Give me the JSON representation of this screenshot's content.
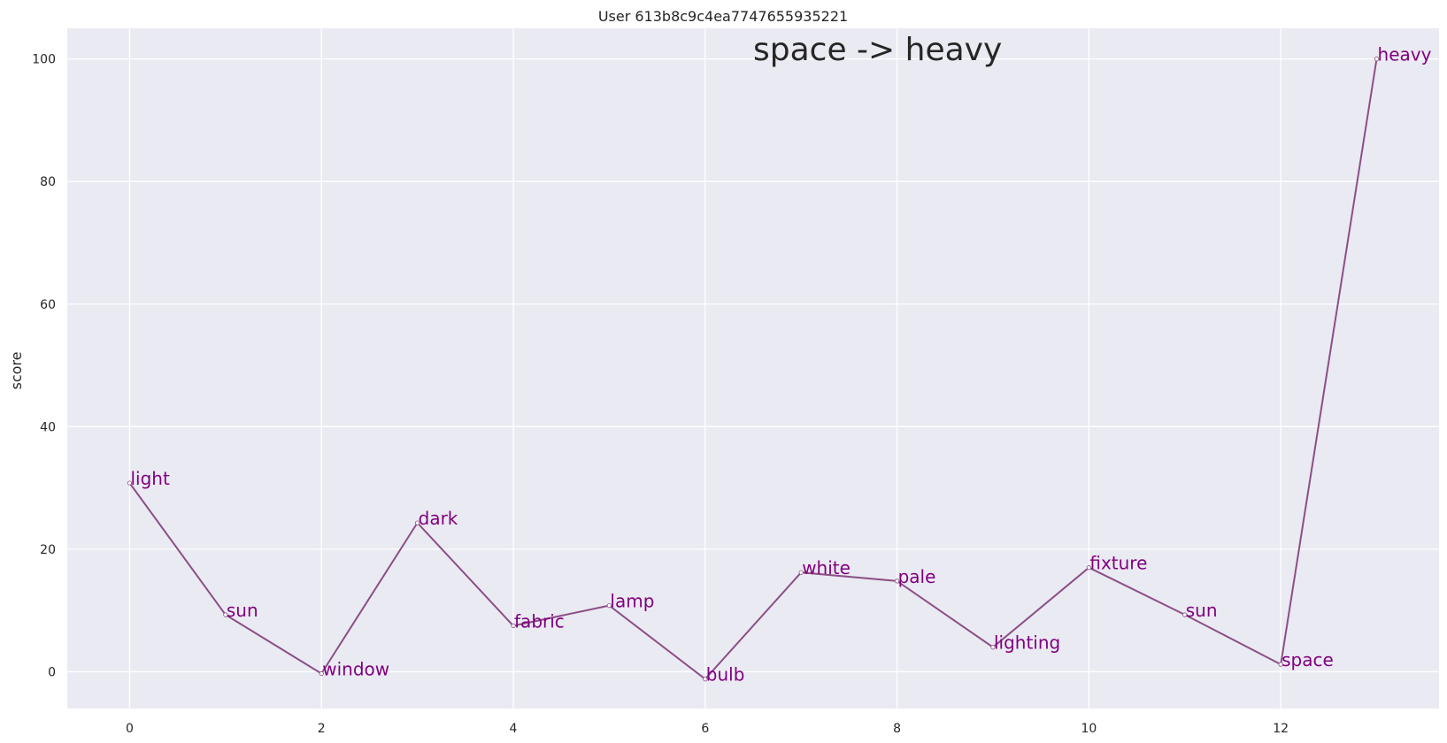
{
  "chart_data": {
    "type": "line",
    "title": "User 613b8c9c4ea7747655935221",
    "annotation": "space -> heavy",
    "xlabel": "",
    "ylabel": "score",
    "xlim": [
      -0.65,
      13.65
    ],
    "ylim": [
      -6,
      105
    ],
    "xticks": [
      0,
      2,
      4,
      6,
      8,
      10,
      12
    ],
    "yticks": [
      0,
      20,
      40,
      60,
      80,
      100
    ],
    "grid": true,
    "legend": "none",
    "colors": {
      "background": "#eaeaf2",
      "grid": "#ffffff",
      "line": "#8b4f86",
      "label": "#800080"
    },
    "series": [
      {
        "x": [
          0,
          1,
          2,
          3,
          4,
          5,
          6,
          7,
          8,
          9,
          10,
          11,
          12,
          13
        ],
        "values": [
          30.8,
          9.3,
          -0.3,
          24.3,
          7.5,
          10.8,
          -1.2,
          16.2,
          14.8,
          4.0,
          17.0,
          9.3,
          1.2,
          100
        ],
        "labels": [
          "light",
          "sun",
          "window",
          "dark",
          "fabric",
          "lamp",
          "bulb",
          "white",
          "pale",
          "lighting",
          "fixture",
          "sun",
          "space",
          "heavy"
        ]
      }
    ]
  }
}
